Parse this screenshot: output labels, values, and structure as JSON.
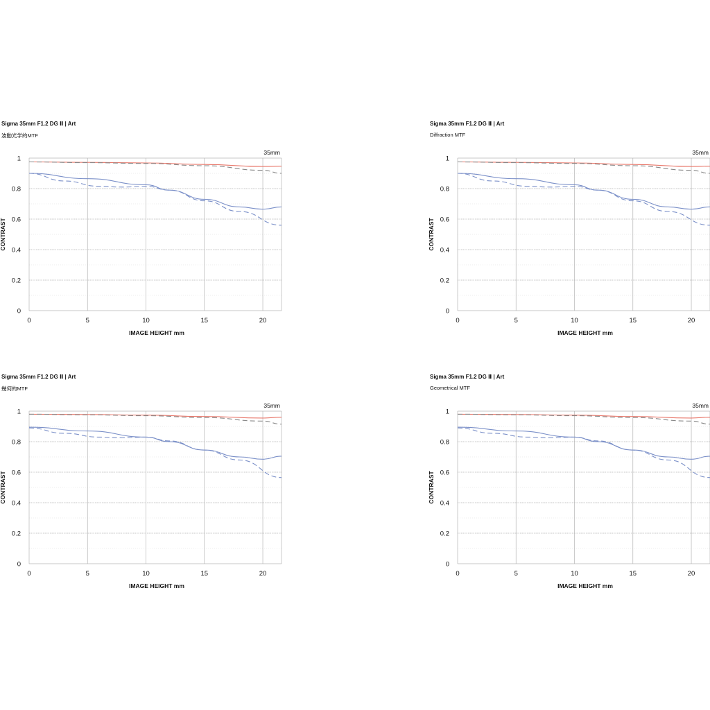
{
  "chart_data": [
    {
      "type": "line",
      "title": "Sigma 35mm F1.2 DG Ⅱ | Art",
      "subtitle": "波動光学的MTF",
      "xlabel": "IMAGE HEIGHT  mm",
      "ylabel": "CONTRAST",
      "focal_label": "35mm",
      "xlim": [
        0,
        21.6
      ],
      "ylim": [
        0,
        1
      ],
      "xticks": [
        "0",
        "5",
        "10",
        "15",
        "20"
      ],
      "yticks": [
        "0",
        "0.2",
        "0.4",
        "0.6",
        "0.8",
        "1"
      ],
      "grid": true,
      "series": [
        {
          "color": "#e8776a",
          "dash": false,
          "x": [
            0,
            5,
            10,
            15,
            20,
            21.6
          ],
          "y": [
            0.975,
            0.972,
            0.968,
            0.958,
            0.945,
            0.947
          ]
        },
        {
          "color": "#888888",
          "dash": true,
          "x": [
            0,
            5,
            10,
            15,
            20,
            21.6
          ],
          "y": [
            0.975,
            0.97,
            0.965,
            0.95,
            0.92,
            0.9
          ]
        },
        {
          "color": "#7a8fc8",
          "dash": false,
          "x": [
            0,
            5,
            10,
            12,
            15,
            18,
            20,
            21.6
          ],
          "y": [
            0.9,
            0.865,
            0.825,
            0.79,
            0.73,
            0.68,
            0.665,
            0.68
          ]
        },
        {
          "color": "#7a8fc8",
          "dash": true,
          "x": [
            0,
            3,
            6,
            8,
            10,
            12,
            15,
            18,
            21.6
          ],
          "y": [
            0.9,
            0.85,
            0.815,
            0.81,
            0.815,
            0.79,
            0.72,
            0.65,
            0.56
          ]
        }
      ]
    },
    {
      "type": "line",
      "title": "Sigma 35mm F1.2 DG Ⅱ | Art",
      "subtitle": "Diffraction MTF",
      "xlabel": "IMAGE HEIGHT  mm",
      "ylabel": "CONTRAST",
      "focal_label": "35mm",
      "xlim": [
        0,
        21.6
      ],
      "ylim": [
        0,
        1
      ],
      "xticks": [
        "0",
        "5",
        "10",
        "15",
        "20"
      ],
      "yticks": [
        "0",
        "0.2",
        "0.4",
        "0.6",
        "0.8",
        "1"
      ],
      "grid": true,
      "series": [
        {
          "color": "#e8776a",
          "dash": false,
          "x": [
            0,
            5,
            10,
            15,
            20,
            21.6
          ],
          "y": [
            0.975,
            0.972,
            0.968,
            0.958,
            0.945,
            0.947
          ]
        },
        {
          "color": "#888888",
          "dash": true,
          "x": [
            0,
            5,
            10,
            15,
            20,
            21.6
          ],
          "y": [
            0.975,
            0.97,
            0.965,
            0.95,
            0.92,
            0.9
          ]
        },
        {
          "color": "#7a8fc8",
          "dash": false,
          "x": [
            0,
            5,
            10,
            12,
            15,
            18,
            20,
            21.6
          ],
          "y": [
            0.9,
            0.865,
            0.825,
            0.79,
            0.73,
            0.68,
            0.665,
            0.68
          ]
        },
        {
          "color": "#7a8fc8",
          "dash": true,
          "x": [
            0,
            3,
            6,
            8,
            10,
            12,
            15,
            18,
            21.6
          ],
          "y": [
            0.9,
            0.85,
            0.815,
            0.81,
            0.815,
            0.79,
            0.72,
            0.65,
            0.56
          ]
        }
      ]
    },
    {
      "type": "line",
      "title": "Sigma 35mm F1.2 DG Ⅱ | Art",
      "subtitle": "幾何的MTF",
      "xlabel": "IMAGE HEIGHT  mm",
      "ylabel": "CONTRAST",
      "focal_label": "35mm",
      "xlim": [
        0,
        21.6
      ],
      "ylim": [
        0,
        1
      ],
      "xticks": [
        "0",
        "5",
        "10",
        "15",
        "20"
      ],
      "yticks": [
        "0",
        "0.2",
        "0.4",
        "0.6",
        "0.8",
        "1"
      ],
      "grid": true,
      "series": [
        {
          "color": "#e8776a",
          "dash": false,
          "x": [
            0,
            5,
            10,
            15,
            20,
            21.6
          ],
          "y": [
            0.98,
            0.978,
            0.974,
            0.965,
            0.955,
            0.96
          ]
        },
        {
          "color": "#888888",
          "dash": true,
          "x": [
            0,
            5,
            10,
            15,
            20,
            21.6
          ],
          "y": [
            0.98,
            0.976,
            0.97,
            0.958,
            0.935,
            0.915
          ]
        },
        {
          "color": "#7a8fc8",
          "dash": false,
          "x": [
            0,
            5,
            10,
            12,
            15,
            18,
            20,
            21.6
          ],
          "y": [
            0.895,
            0.87,
            0.83,
            0.8,
            0.745,
            0.7,
            0.685,
            0.705
          ]
        },
        {
          "color": "#7a8fc8",
          "dash": true,
          "x": [
            0,
            3,
            6,
            8,
            10,
            12,
            15,
            18,
            21.6
          ],
          "y": [
            0.89,
            0.855,
            0.83,
            0.825,
            0.83,
            0.805,
            0.745,
            0.68,
            0.565
          ]
        }
      ]
    },
    {
      "type": "line",
      "title": "Sigma 35mm F1.2 DG Ⅱ | Art",
      "subtitle": "Geometrical MTF",
      "xlabel": "IMAGE HEIGHT  mm",
      "ylabel": "CONTRAST",
      "focal_label": "35mm",
      "xlim": [
        0,
        21.6
      ],
      "ylim": [
        0,
        1
      ],
      "xticks": [
        "0",
        "5",
        "10",
        "15",
        "20"
      ],
      "yticks": [
        "0",
        "0.2",
        "0.4",
        "0.6",
        "0.8",
        "1"
      ],
      "grid": true,
      "series": [
        {
          "color": "#e8776a",
          "dash": false,
          "x": [
            0,
            5,
            10,
            15,
            20,
            21.6
          ],
          "y": [
            0.98,
            0.978,
            0.974,
            0.965,
            0.955,
            0.96
          ]
        },
        {
          "color": "#888888",
          "dash": true,
          "x": [
            0,
            5,
            10,
            15,
            20,
            21.6
          ],
          "y": [
            0.98,
            0.976,
            0.97,
            0.958,
            0.935,
            0.915
          ]
        },
        {
          "color": "#7a8fc8",
          "dash": false,
          "x": [
            0,
            5,
            10,
            12,
            15,
            18,
            20,
            21.6
          ],
          "y": [
            0.895,
            0.87,
            0.83,
            0.8,
            0.745,
            0.7,
            0.685,
            0.705
          ]
        },
        {
          "color": "#7a8fc8",
          "dash": true,
          "x": [
            0,
            3,
            6,
            8,
            10,
            12,
            15,
            18,
            21.6
          ],
          "y": [
            0.89,
            0.855,
            0.83,
            0.825,
            0.83,
            0.805,
            0.745,
            0.68,
            0.565
          ]
        }
      ]
    }
  ]
}
